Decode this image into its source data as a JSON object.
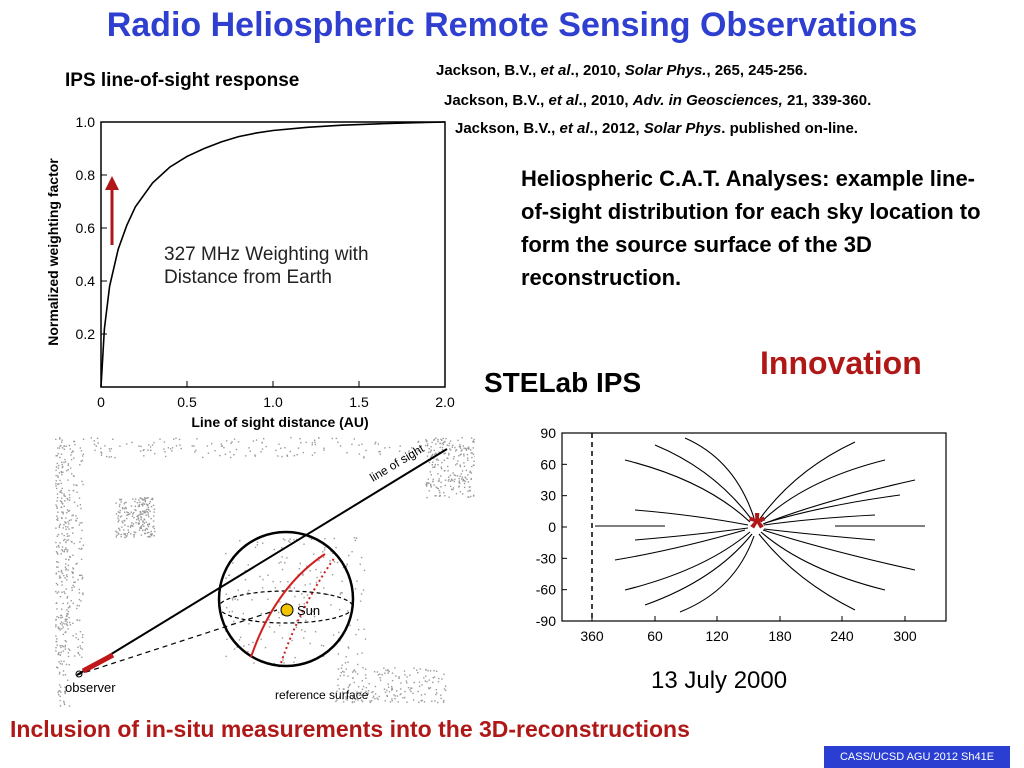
{
  "title": "Radio Heliospheric Remote Sensing Observations",
  "ips_heading": "IPS line-of-sight response",
  "references": [
    {
      "author": "Jackson, B.V.,",
      "etal": "et al",
      "year": "., 2010,",
      "journal": "Solar Phys.",
      "rest": ", 265, 245-256."
    },
    {
      "author": "Jackson, B.V.,",
      "etal": "et al",
      "year": "., 2010,",
      "journal": "Adv. in Geosciences,",
      "rest": " 21, 339-360."
    },
    {
      "author": "Jackson, B.V.,",
      "etal": "et al",
      "year": "., 2012,",
      "journal": "Solar Phys",
      "rest": ". published on-line."
    }
  ],
  "description": "Heliospheric C.A.T. Analyses: example line-of-sight distribution for each sky location to form the source surface of the 3D reconstruction.",
  "innovation": "Innovation",
  "stelab": "STELab IPS",
  "date": "13 July 2000",
  "insitu": "Inclusion of in-situ measurements into the 3D-reconstructions",
  "footer": "CASS/UCSD AGU 2012 Sh41E",
  "diagram": {
    "line_of_sight": "line of sight",
    "sun": "Sun",
    "observer": "observer",
    "reference_surface": "reference surface"
  },
  "colors": {
    "title": "#2f3fd0",
    "accent_red": "#b01818",
    "footer_bg": "#2a3fd2",
    "sun": "#f2c400"
  },
  "chart_data": [
    {
      "type": "line",
      "title": "",
      "annotation": "327 MHz Weighting with Distance from Earth",
      "xlabel": "Line of sight  distance (AU)",
      "ylabel": "Normalized weighting factor",
      "xlim": [
        0,
        2.0
      ],
      "ylim": [
        0,
        1.0
      ],
      "x_ticks": [
        "0",
        "0.5",
        "1.0",
        "1.5",
        "2.0"
      ],
      "y_ticks": [
        "0.2",
        "0.4",
        "0.6",
        "0.8",
        "1.0"
      ],
      "series": [
        {
          "x": [
            0.0,
            0.02,
            0.05,
            0.1,
            0.15,
            0.2,
            0.3,
            0.4,
            0.5,
            0.6,
            0.7,
            0.8,
            0.9,
            1.0,
            1.2,
            1.4,
            1.6,
            1.8,
            2.0
          ],
          "values": [
            0.0,
            0.22,
            0.38,
            0.52,
            0.61,
            0.68,
            0.77,
            0.83,
            0.87,
            0.9,
            0.925,
            0.945,
            0.958,
            0.968,
            0.98,
            0.988,
            0.993,
            0.997,
            1.0
          ]
        }
      ]
    },
    {
      "type": "line",
      "title": "",
      "xlabel": "",
      "ylabel": "",
      "x_ticks": [
        "360",
        "60",
        "120",
        "180",
        "240",
        "300"
      ],
      "y_ticks": [
        "90",
        "60",
        "30",
        "0",
        "-30",
        "-60",
        "-90"
      ],
      "ylim": [
        -90,
        90
      ],
      "marker": "*"
    }
  ]
}
